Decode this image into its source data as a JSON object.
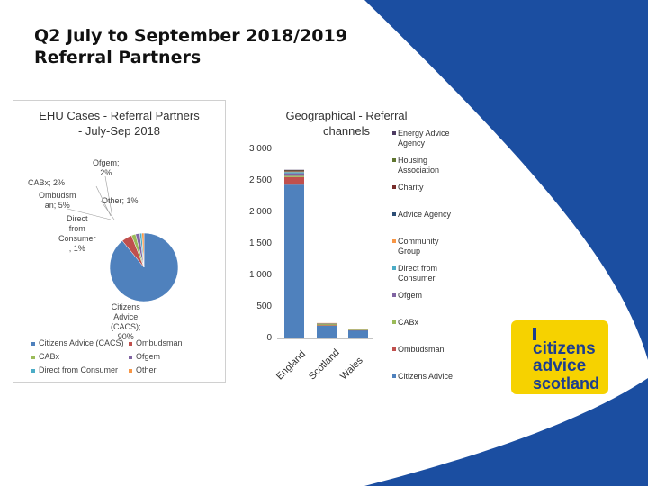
{
  "slide": {
    "title_line1": "Q2 July to September 2018/2019",
    "title_line2": "Referral Partners"
  },
  "colors": {
    "brand_blue": "#1b4ea1",
    "logo_yellow": "#f6d200",
    "logo_text": "#1d3e8f"
  },
  "logo": {
    "line1": "citizens",
    "line2": "advice",
    "line3": "scotland"
  },
  "chart_data": [
    {
      "type": "pie",
      "title_line1": "EHU Cases - Referral Partners",
      "title_line2": "- July-Sep 2018",
      "slices": [
        {
          "name": "Citizens Advice (CACS)",
          "value": 90,
          "label_lines": [
            "Citizens",
            "Advice",
            "(CACS);",
            "90%"
          ],
          "color": "#4f81bd"
        },
        {
          "name": "Ombudsman",
          "value": 5,
          "label_lines": [
            "Ombudsm",
            "an; 5%"
          ],
          "color": "#c0504d"
        },
        {
          "name": "CABx",
          "value": 2,
          "label_lines": [
            "CABx; 2%"
          ],
          "color": "#9bbb59"
        },
        {
          "name": "Ofgem",
          "value": 2,
          "label_lines": [
            "Ofgem;",
            "2%"
          ],
          "color": "#8064a2"
        },
        {
          "name": "Direct from Consumer",
          "value": 1,
          "label_lines": [
            "Direct",
            "from",
            "Consumer",
            "; 1%"
          ],
          "color": "#4bacc6"
        },
        {
          "name": "Other",
          "value": 1,
          "label_lines": [
            "Other; 1%"
          ],
          "color": "#f79646"
        }
      ],
      "legend": [
        {
          "label": "Citizens Advice (CACS)",
          "color": "#4f81bd"
        },
        {
          "label": "Ombudsman",
          "color": "#c0504d"
        },
        {
          "label": "CABx",
          "color": "#9bbb59"
        },
        {
          "label": "Ofgem",
          "color": "#8064a2"
        },
        {
          "label": "Direct from Consumer",
          "color": "#4bacc6"
        },
        {
          "label": "Other",
          "color": "#f79646"
        }
      ]
    },
    {
      "type": "bar",
      "stacked": true,
      "title_line1": "Geographical - Referral",
      "title_line2": "channels",
      "categories": [
        "England",
        "Scotland",
        "Wales"
      ],
      "ylim": [
        0,
        3000
      ],
      "yticks": [
        0,
        500,
        1000,
        1500,
        2000,
        2500,
        3000
      ],
      "ytick_labels": [
        "0",
        "500",
        "1 000",
        "1 500",
        "2 000",
        "2 500",
        "3 000"
      ],
      "grid": false,
      "legend_position": "right",
      "series": [
        {
          "name": "Citizens Advice",
          "color": "#4f81bd",
          "values": [
            2440,
            200,
            130
          ]
        },
        {
          "name": "Ombudsman",
          "color": "#c0504d",
          "values": [
            120,
            10,
            5
          ]
        },
        {
          "name": "CABx",
          "color": "#9bbb59",
          "values": [
            20,
            20,
            5
          ]
        },
        {
          "name": "Ofgem",
          "color": "#8064a2",
          "values": [
            40,
            5,
            0
          ]
        },
        {
          "name": "Direct from Consumer",
          "color": "#4bacc6",
          "values": [
            20,
            5,
            0
          ]
        },
        {
          "name": "Community Group",
          "color": "#f79646",
          "values": [
            10,
            5,
            0
          ]
        },
        {
          "name": "Advice Agency",
          "color": "#2c4d75",
          "values": [
            10,
            0,
            0
          ]
        },
        {
          "name": "Charity",
          "color": "#772c2a",
          "values": [
            5,
            0,
            0
          ]
        },
        {
          "name": "Housing Association",
          "color": "#5f7530",
          "values": [
            5,
            0,
            0
          ]
        },
        {
          "name": "Energy Advice Agency",
          "color": "#4d3b62",
          "values": [
            5,
            0,
            0
          ]
        }
      ],
      "legend": [
        {
          "label_lines": [
            "Energy Advice",
            "Agency"
          ],
          "color": "#4d3b62"
        },
        {
          "label_lines": [
            "Housing",
            "Association"
          ],
          "color": "#5f7530"
        },
        {
          "label_lines": [
            "Charity"
          ],
          "color": "#772c2a"
        },
        {
          "label_lines": [
            "Advice Agency"
          ],
          "color": "#2c4d75"
        },
        {
          "label_lines": [
            "Community",
            "Group"
          ],
          "color": "#f79646"
        },
        {
          "label_lines": [
            "Direct from",
            "Consumer"
          ],
          "color": "#4bacc6"
        },
        {
          "label_lines": [
            "Ofgem"
          ],
          "color": "#8064a2"
        },
        {
          "label_lines": [
            "CABx"
          ],
          "color": "#9bbb59"
        },
        {
          "label_lines": [
            "Ombudsman"
          ],
          "color": "#c0504d"
        },
        {
          "label_lines": [
            "Citizens Advice"
          ],
          "color": "#4f81bd"
        }
      ]
    }
  ]
}
